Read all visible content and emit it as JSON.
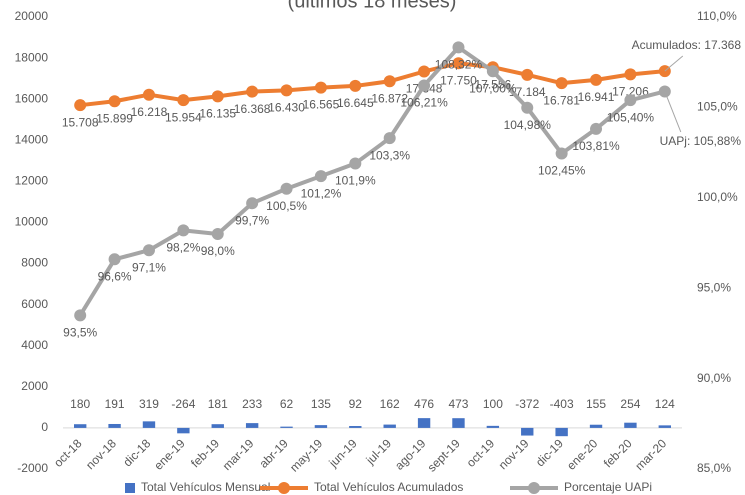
{
  "chart_data": {
    "type": "combo",
    "title": "(últimos 18 meses)",
    "categories": [
      "oct-18",
      "nov-18",
      "dic-18",
      "ene-19",
      "feb-19",
      "mar-19",
      "abr-19",
      "may-19",
      "jun-19",
      "jul-19",
      "ago-19",
      "sept-19",
      "oct-19",
      "nov-19",
      "dic-19",
      "ene-20",
      "feb-20",
      "mar-20"
    ],
    "series": [
      {
        "name": "Total Vehículos Mensual",
        "color": "#4472c4",
        "kind": "bar",
        "values": [
          180,
          191,
          319,
          -264,
          181,
          233,
          62,
          135,
          92,
          162,
          476,
          473,
          100,
          -372,
          -403,
          155,
          254,
          124
        ]
      },
      {
        "name": "Total Vehículos Acumulados",
        "color": "#ed7d31",
        "kind": "line",
        "values": [
          15708,
          15899,
          16218,
          15954,
          16135,
          16368,
          16430,
          16565,
          16645,
          16872,
          17348,
          17750,
          17556,
          17184,
          16781,
          16941,
          17206,
          17368
        ],
        "value_labels": [
          "15.708",
          "15.899",
          "16.218",
          "15.954",
          "16.135",
          "16.368",
          "16.430",
          "16.565",
          "16.645",
          "16.872",
          "17.348",
          "17.750",
          "17.556",
          "17.184",
          "16.781",
          "16.941",
          "17.206",
          null
        ]
      },
      {
        "name": "Porcentaje UAPi",
        "color": "#a5a5a5",
        "kind": "line",
        "axis": "y2",
        "values": [
          93.5,
          96.6,
          97.1,
          98.2,
          98.0,
          99.7,
          100.5,
          101.2,
          101.9,
          103.3,
          106.21,
          108.32,
          107.0,
          104.98,
          102.45,
          103.81,
          105.4,
          105.88
        ],
        "value_labels": [
          "93,5%",
          "96,6%",
          "97,1%",
          "98,2%",
          "98,0%",
          "99,7%",
          "100,5%",
          "101,2%",
          "101,9%",
          "103,3%",
          "106,21%",
          "108,32%",
          "107,00%",
          "104,98%",
          "102,45%",
          "103,81%",
          "105,40%",
          null
        ]
      }
    ],
    "annotations": [
      "Acumulados: 17.368",
      "UAPj: 105,88%"
    ],
    "ylim": [
      -2000,
      20000
    ],
    "yticks": [
      -2000,
      0,
      2000,
      4000,
      6000,
      8000,
      10000,
      12000,
      14000,
      16000,
      18000,
      20000
    ],
    "y2lim": [
      85,
      110
    ],
    "y2ticks": [
      {
        "value": 85,
        "label": "85,0%"
      },
      {
        "value": 90,
        "label": "90,0%"
      },
      {
        "value": 95,
        "label": "95,0%"
      },
      {
        "value": 100,
        "label": "100,0%"
      },
      {
        "value": 105,
        "label": "105,0%"
      },
      {
        "value": 110,
        "label": "110,0%"
      }
    ],
    "legend": "bottom"
  }
}
